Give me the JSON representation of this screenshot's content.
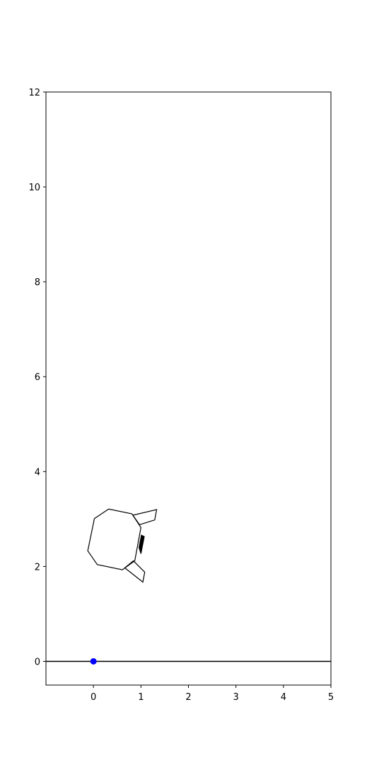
{
  "chart_data": {
    "type": "scatter",
    "xlim": [
      -1,
      5
    ],
    "ylim": [
      -0.5,
      12
    ],
    "x_ticks": [
      0,
      1,
      2,
      3,
      4,
      5
    ],
    "y_ticks": [
      0,
      2,
      4,
      6,
      8,
      10,
      12
    ],
    "grid": false,
    "ground_line": {
      "y": 0,
      "color": "#000000"
    },
    "points": [
      {
        "x": 0,
        "y": 0,
        "color": "#0000ff"
      }
    ],
    "shapes": [
      {
        "name": "body",
        "fill": "none",
        "points": [
          [
            -0.12,
            2.33
          ],
          [
            0.02,
            3.01
          ],
          [
            0.32,
            3.21
          ],
          [
            0.81,
            3.11
          ],
          [
            1.0,
            2.82
          ],
          [
            0.87,
            2.12
          ],
          [
            0.61,
            1.93
          ],
          [
            0.08,
            2.04
          ]
        ]
      },
      {
        "name": "upper-arm",
        "fill": "none",
        "points": [
          [
            0.83,
            3.08
          ],
          [
            1.33,
            3.2
          ],
          [
            1.29,
            2.98
          ],
          [
            0.97,
            2.88
          ]
        ]
      },
      {
        "name": "lower-arm",
        "fill": "none",
        "points": [
          [
            0.84,
            2.12
          ],
          [
            1.08,
            1.88
          ],
          [
            1.04,
            1.67
          ],
          [
            0.66,
            1.97
          ]
        ]
      },
      {
        "name": "sensor",
        "fill": "#000000",
        "points": [
          [
            0.96,
            2.4
          ],
          [
            1.01,
            2.66
          ],
          [
            1.07,
            2.63
          ],
          [
            1.0,
            2.27
          ]
        ]
      }
    ]
  }
}
